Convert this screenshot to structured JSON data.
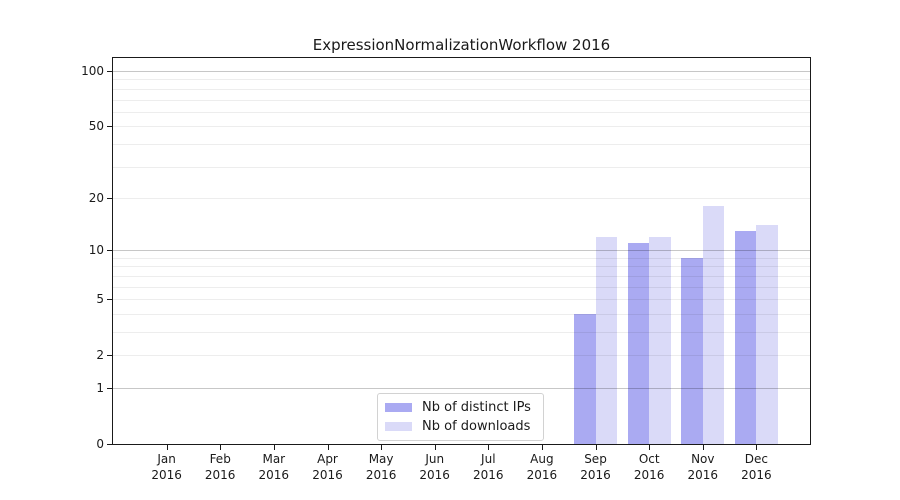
{
  "title": "ExpressionNormalizationWorkflow 2016",
  "chart_data": {
    "type": "bar",
    "title": "ExpressionNormalizationWorkflow 2016",
    "categories": [
      "Jan",
      "Feb",
      "Mar",
      "Apr",
      "May",
      "Jun",
      "Jul",
      "Aug",
      "Sep",
      "Oct",
      "Nov",
      "Dec"
    ],
    "x_year_sublabel": "2016",
    "series": [
      {
        "name": "Nb of distinct IPs",
        "color": "#aaaaf2",
        "values": [
          0,
          0,
          0,
          0,
          0,
          0,
          0,
          0,
          4,
          11,
          9,
          13
        ]
      },
      {
        "name": "Nb of downloads",
        "color": "#dadaf8",
        "values": [
          0,
          0,
          0,
          0,
          0,
          0,
          0,
          0,
          12,
          12,
          18,
          14
        ]
      }
    ],
    "yscale": "log1p",
    "ylim": [
      0,
      117
    ],
    "yticks": [
      0,
      1,
      2,
      5,
      10,
      20,
      50,
      100
    ],
    "major_gridlines": [
      1,
      10,
      100
    ],
    "minor_gridlines": [
      2,
      3,
      4,
      5,
      6,
      7,
      8,
      9,
      20,
      30,
      40,
      50,
      60,
      70,
      80,
      90
    ],
    "grid": true,
    "legend_position": "lower center",
    "xlabel": "",
    "ylabel": ""
  },
  "colors": {
    "distinct_ips": "#aaaaf2",
    "downloads": "#dadaf8",
    "axis": "#1a1a1a",
    "legend_border": "#d2d2d2",
    "background": "#ffffff"
  }
}
